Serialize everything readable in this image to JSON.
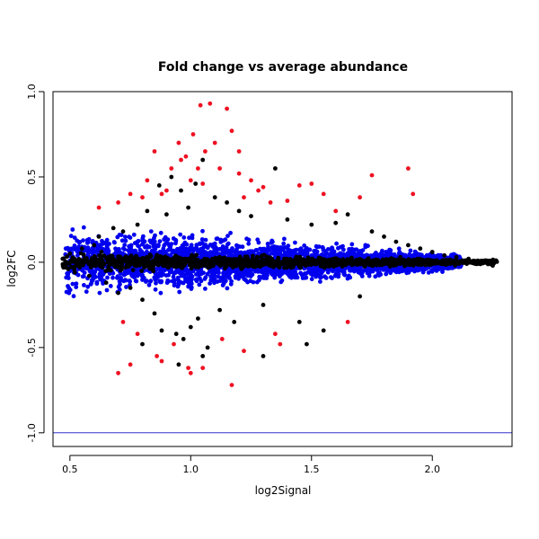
{
  "chart_data": {
    "type": "scatter",
    "title": "Fold change vs average abundance",
    "xlabel": "log2Signal",
    "ylabel": "log2FC",
    "xlim": [
      0.43,
      2.33
    ],
    "ylim": [
      -1.08,
      1.0
    ],
    "xticks": [
      0.5,
      1.0,
      1.5,
      2.0
    ],
    "xtick_labels": [
      "0.5",
      "1.0",
      "1.5",
      "2.0"
    ],
    "yticks": [
      -1.0,
      -0.5,
      0.0,
      0.5,
      1.0
    ],
    "ytick_labels": [
      "-1.0",
      "-0.5",
      "0.0",
      "0.5",
      "1.0"
    ],
    "grid": false,
    "legend": "none",
    "reference_lines": [
      {
        "axis": "y",
        "value": 1.0,
        "color": "#3333cc"
      },
      {
        "axis": "y",
        "value": -1.0,
        "color": "#3333cc"
      }
    ],
    "series": [
      {
        "color": "#000000",
        "points": [
          [
            0.47,
            0.02
          ],
          [
            0.48,
            -0.03
          ],
          [
            0.5,
            0.05
          ],
          [
            0.52,
            -0.06
          ],
          [
            0.55,
            0.08
          ],
          [
            0.58,
            -0.08
          ],
          [
            0.6,
            0.1
          ],
          [
            0.62,
            0.15
          ],
          [
            0.65,
            -0.12
          ],
          [
            0.68,
            0.2
          ],
          [
            0.7,
            -0.18
          ],
          [
            0.72,
            0.18
          ],
          [
            0.75,
            -0.15
          ],
          [
            0.78,
            0.22
          ],
          [
            0.8,
            -0.22
          ],
          [
            0.82,
            0.3
          ],
          [
            0.85,
            -0.3
          ],
          [
            0.87,
            0.45
          ],
          [
            0.88,
            -0.4
          ],
          [
            0.9,
            0.28
          ],
          [
            0.92,
            0.5
          ],
          [
            0.94,
            -0.42
          ],
          [
            0.96,
            0.42
          ],
          [
            0.97,
            -0.45
          ],
          [
            0.99,
            0.32
          ],
          [
            1.0,
            -0.38
          ],
          [
            1.02,
            0.46
          ],
          [
            1.03,
            -0.33
          ],
          [
            1.05,
            0.6
          ],
          [
            1.07,
            -0.5
          ],
          [
            1.1,
            0.38
          ],
          [
            1.12,
            -0.28
          ],
          [
            1.15,
            0.35
          ],
          [
            1.18,
            -0.35
          ],
          [
            1.2,
            0.3
          ],
          [
            1.25,
            0.27
          ],
          [
            1.3,
            -0.25
          ],
          [
            1.35,
            0.55
          ],
          [
            1.4,
            0.25
          ],
          [
            1.45,
            -0.35
          ],
          [
            1.5,
            0.22
          ],
          [
            1.55,
            -0.4
          ],
          [
            1.6,
            0.23
          ],
          [
            1.65,
            0.28
          ],
          [
            1.7,
            -0.2
          ],
          [
            1.75,
            0.18
          ],
          [
            1.8,
            0.15
          ],
          [
            1.85,
            0.12
          ],
          [
            1.9,
            0.1
          ],
          [
            1.95,
            0.08
          ],
          [
            2.0,
            0.06
          ],
          [
            2.05,
            0.04
          ],
          [
            2.1,
            0.03
          ],
          [
            2.15,
            0.02
          ],
          [
            2.2,
            -0.01
          ],
          [
            2.25,
            -0.02
          ],
          [
            1.48,
            -0.48
          ],
          [
            1.05,
            -0.55
          ],
          [
            0.95,
            -0.6
          ],
          [
            1.3,
            -0.55
          ],
          [
            0.8,
            -0.48
          ]
        ]
      },
      {
        "color": "#ee1122",
        "points": [
          [
            0.62,
            0.32
          ],
          [
            0.7,
            0.35
          ],
          [
            0.72,
            -0.35
          ],
          [
            0.75,
            0.4
          ],
          [
            0.78,
            -0.42
          ],
          [
            0.8,
            0.38
          ],
          [
            0.82,
            0.48
          ],
          [
            0.85,
            0.65
          ],
          [
            0.86,
            -0.55
          ],
          [
            0.88,
            0.4
          ],
          [
            0.9,
            0.42
          ],
          [
            0.92,
            0.55
          ],
          [
            0.93,
            -0.48
          ],
          [
            0.95,
            0.7
          ],
          [
            0.96,
            0.6
          ],
          [
            0.98,
            0.62
          ],
          [
            0.99,
            -0.62
          ],
          [
            1.0,
            0.48
          ],
          [
            1.01,
            0.75
          ],
          [
            1.03,
            0.55
          ],
          [
            1.04,
            0.92
          ],
          [
            1.06,
            0.65
          ],
          [
            1.08,
            0.93
          ],
          [
            1.1,
            0.7
          ],
          [
            1.12,
            0.55
          ],
          [
            1.13,
            -0.45
          ],
          [
            1.15,
            0.9
          ],
          [
            1.17,
            0.77
          ],
          [
            1.2,
            0.65
          ],
          [
            1.22,
            0.38
          ],
          [
            1.25,
            0.48
          ],
          [
            1.28,
            0.42
          ],
          [
            1.3,
            0.44
          ],
          [
            1.33,
            0.35
          ],
          [
            1.37,
            -0.48
          ],
          [
            1.4,
            0.36
          ],
          [
            1.45,
            0.45
          ],
          [
            1.5,
            0.46
          ],
          [
            1.55,
            0.4
          ],
          [
            1.6,
            0.3
          ],
          [
            1.65,
            -0.35
          ],
          [
            1.7,
            0.38
          ],
          [
            1.75,
            0.51
          ],
          [
            1.9,
            0.55
          ],
          [
            1.92,
            0.4
          ],
          [
            0.7,
            -0.65
          ],
          [
            0.75,
            -0.6
          ],
          [
            0.88,
            -0.58
          ],
          [
            1.0,
            -0.65
          ],
          [
            1.05,
            -0.62
          ],
          [
            1.17,
            -0.72
          ],
          [
            1.22,
            -0.52
          ],
          [
            1.35,
            -0.42
          ],
          [
            1.05,
            0.46
          ],
          [
            1.2,
            0.52
          ]
        ]
      }
    ],
    "dense_bands": [
      {
        "color": "#0000ee",
        "x": [
          0.48,
          2.12
        ],
        "y_half_width_start": 0.27,
        "y_half_width_end": 0.06,
        "n": 3200
      },
      {
        "color": "#000000",
        "x": [
          0.47,
          2.27
        ],
        "y_half_width_start": 0.07,
        "y_half_width_end": 0.02,
        "n": 1400
      }
    ]
  }
}
